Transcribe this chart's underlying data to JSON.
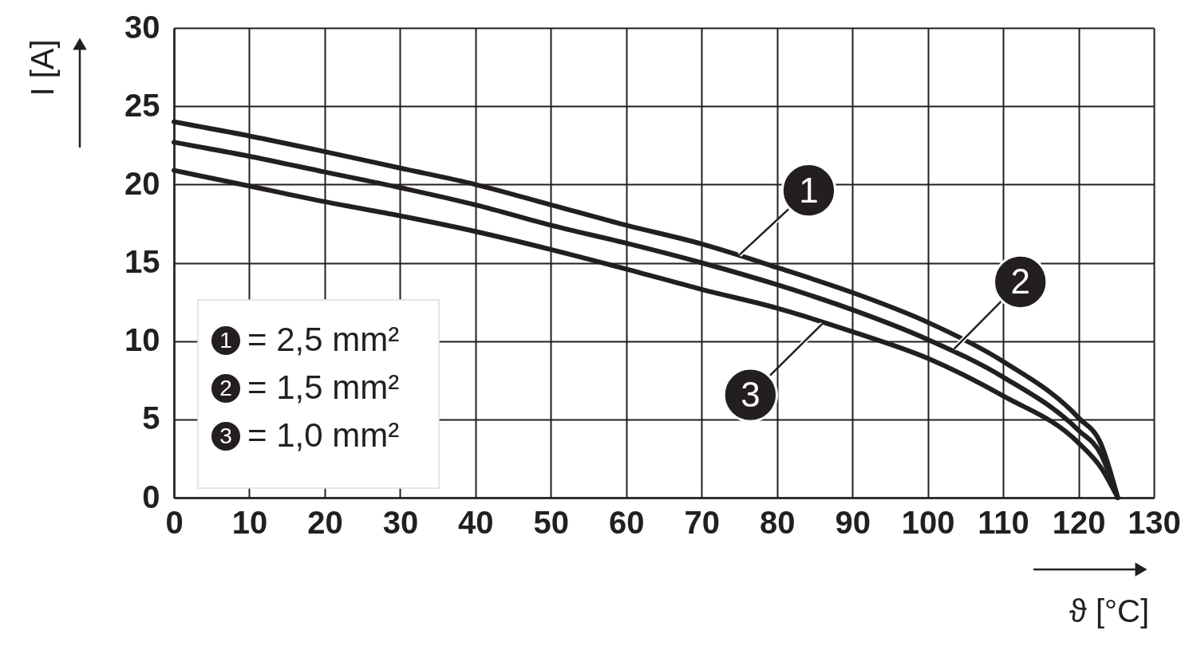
{
  "chart_data": {
    "type": "line",
    "xlabel": "ϑ [°C]",
    "ylabel": "I [A]",
    "x": [
      0,
      10,
      20,
      30,
      40,
      50,
      60,
      70,
      80,
      90,
      100,
      110,
      120,
      123,
      125.2
    ],
    "series": [
      {
        "name": "= 2,5 mm²",
        "color": "#231f20",
        "values": [
          24.0,
          23.1,
          22.1,
          21.05,
          20.0,
          18.7,
          17.4,
          16.2,
          14.7,
          13.1,
          11.2,
          8.7,
          5.1,
          3.4,
          0
        ]
      },
      {
        "name": "= 1,5 mm²",
        "color": "#231f20",
        "values": [
          22.7,
          21.8,
          20.8,
          19.8,
          18.7,
          17.4,
          16.25,
          15.0,
          13.6,
          12.0,
          10.1,
          7.7,
          4.3,
          2.75,
          0
        ]
      },
      {
        "name": "= 1,0 mm²",
        "color": "#231f20",
        "values": [
          20.9,
          19.9,
          18.9,
          18.0,
          17.0,
          15.85,
          14.6,
          13.3,
          12.1,
          10.6,
          8.9,
          6.5,
          3.5,
          1.9,
          0
        ]
      }
    ],
    "annotations": [
      {
        "text": "1",
        "x": 75,
        "y": 15.5
      },
      {
        "text": "2",
        "x": 103.5,
        "y": 9.5
      },
      {
        "text": "3",
        "x": 86,
        "y": 11.1
      }
    ],
    "xlim": [
      0,
      130
    ],
    "xticks": [
      0,
      10,
      20,
      30,
      40,
      50,
      60,
      70,
      80,
      90,
      100,
      110,
      120,
      130
    ],
    "ylim": [
      0,
      30
    ],
    "yticks": [
      0,
      5,
      10,
      15,
      20,
      25,
      30
    ],
    "grid": true,
    "legend": "bottom left",
    "marker": "none",
    "line_style": "solid"
  }
}
